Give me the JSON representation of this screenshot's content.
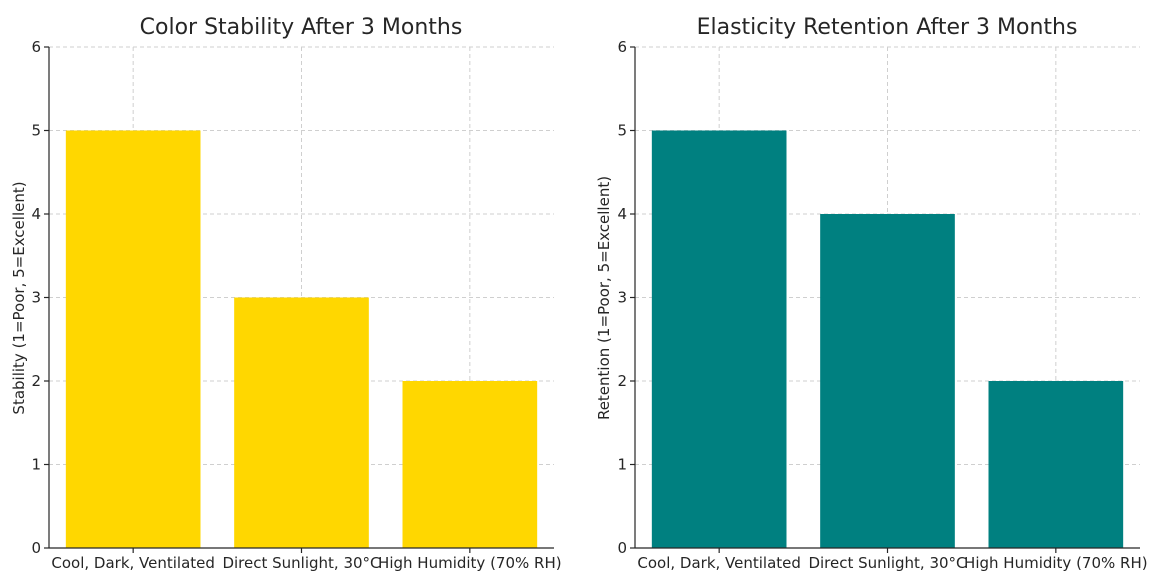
{
  "chart_data": [
    {
      "type": "bar",
      "title": "Color Stability After 3 Months",
      "xlabel": "",
      "ylabel": "Stability (1=Poor, 5=Excellent)",
      "categories": [
        "Cool, Dark, Ventilated",
        "Direct Sunlight, 30°C",
        "High Humidity (70% RH)"
      ],
      "values": [
        5,
        3,
        2
      ],
      "ylim": [
        0,
        6
      ],
      "yticks": [
        "0",
        "1",
        "2",
        "3",
        "4",
        "5",
        "6"
      ],
      "color": "#FFD700",
      "grid": true
    },
    {
      "type": "bar",
      "title": "Elasticity Retention After 3 Months",
      "xlabel": "",
      "ylabel": "Retention (1=Poor, 5=Excellent)",
      "categories": [
        "Cool, Dark, Ventilated",
        "Direct Sunlight, 30°C",
        "High Humidity (70% RH)"
      ],
      "values": [
        5,
        4,
        2
      ],
      "ylim": [
        0,
        6
      ],
      "yticks": [
        "0",
        "1",
        "2",
        "3",
        "4",
        "5",
        "6"
      ],
      "color": "#008080",
      "grid": true
    }
  ]
}
